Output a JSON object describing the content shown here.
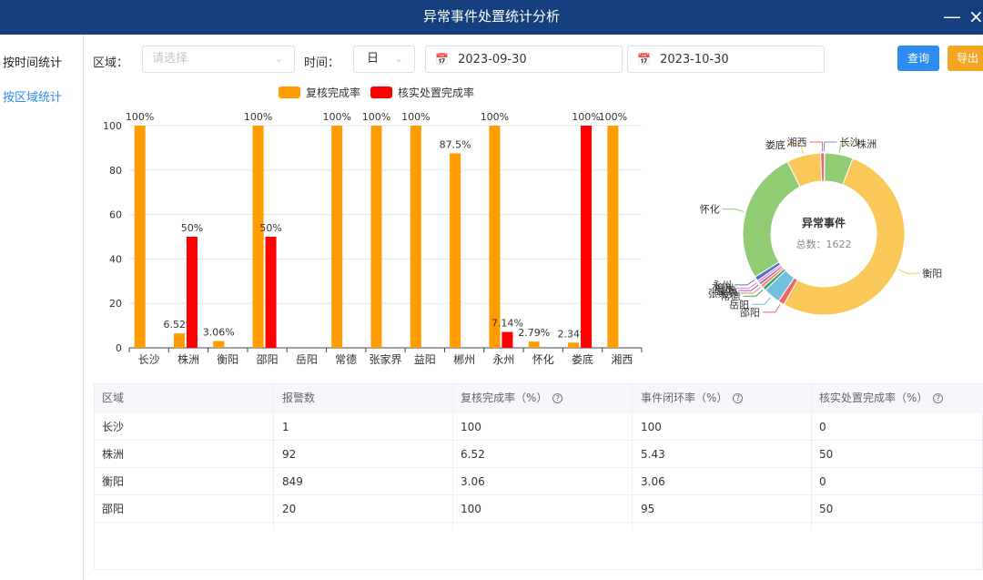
{
  "window": {
    "title": "异常事件处置统计分析",
    "minimize": "—",
    "close": "×"
  },
  "sidebar": {
    "items": [
      {
        "label": "按时间统计"
      },
      {
        "label": "按区域统计"
      }
    ]
  },
  "filters": {
    "region_label": "区域：",
    "region_placeholder": "请选择",
    "time_label": "时间：",
    "time_unit": "日",
    "start_date": "2023-09-30",
    "end_date": "2023-10-30",
    "query_button": "查询",
    "export_button": "导出"
  },
  "colors": {
    "orange": "#ff9c00",
    "red": "#ff0000",
    "blue": "#2d8cf0",
    "export": "#f5a623"
  },
  "chart_data": [
    {
      "type": "bar",
      "categories": [
        "长沙",
        "株洲",
        "衡阳",
        "邵阳",
        "岳阳",
        "常德",
        "张家界",
        "益阳",
        "郴州",
        "永州",
        "怀化",
        "娄底",
        "湘西"
      ],
      "series": [
        {
          "name": "复核完成率",
          "color": "#ff9c00",
          "values": [
            100,
            6.52,
            3.06,
            100,
            null,
            100,
            100,
            100,
            87.5,
            100,
            2.79,
            2.34,
            100
          ],
          "labels": [
            "100%",
            "6.52%",
            "3.06%",
            "100%",
            "",
            "100%",
            "100%",
            "100%",
            "87.5%",
            "100%",
            "2.79%",
            "2.34%",
            "100%"
          ]
        },
        {
          "name": "核实处置完成率",
          "color": "#ff0000",
          "values": [
            null,
            50,
            null,
            50,
            null,
            null,
            null,
            null,
            null,
            7.14,
            null,
            100,
            null
          ],
          "labels": [
            "",
            "50%",
            "",
            "50%",
            "",
            "",
            "",
            "",
            "",
            "7.14%",
            "",
            "100%",
            ""
          ]
        }
      ],
      "ylim": [
        0,
        100
      ],
      "yticks": [
        0,
        20,
        40,
        60,
        80,
        100
      ]
    },
    {
      "type": "pie",
      "center_title": "异常事件",
      "center_subtitle": "总数：1622",
      "slices": [
        {
          "name": "长沙",
          "value": 1,
          "color": "#7b88cf"
        },
        {
          "name": "株洲",
          "value": 92,
          "color": "#91cc75"
        },
        {
          "name": "衡阳",
          "value": 849,
          "color": "#fac858"
        },
        {
          "name": "邵阳",
          "value": 20,
          "color": "#ee6666"
        },
        {
          "name": "岳阳",
          "value": 55,
          "color": "#73c0de"
        },
        {
          "name": "常德",
          "value": 12,
          "color": "#3ba272"
        },
        {
          "name": "张家界",
          "value": 10,
          "color": "#fc8452"
        },
        {
          "name": "益阳",
          "value": 9,
          "color": "#9a60b4"
        },
        {
          "name": "郴州",
          "value": 8,
          "color": "#ea7ccc"
        },
        {
          "name": "永州",
          "value": 14,
          "color": "#5470c6"
        },
        {
          "name": "怀化",
          "value": 430,
          "color": "#91cc75"
        },
        {
          "name": "娄底",
          "value": 110,
          "color": "#fac858"
        },
        {
          "name": "湘西",
          "value": 12,
          "color": "#ee6666"
        }
      ]
    }
  ],
  "table": {
    "headers": [
      "区域",
      "报警数",
      "复核完成率（%）",
      "事件闭环率（%）",
      "核实处置完成率（%）"
    ],
    "rows": [
      [
        "长沙",
        "1",
        "100",
        "100",
        "0"
      ],
      [
        "株洲",
        "92",
        "6.52",
        "5.43",
        "50"
      ],
      [
        "衡阳",
        "849",
        "3.06",
        "3.06",
        "0"
      ],
      [
        "邵阳",
        "20",
        "100",
        "95",
        "50"
      ]
    ]
  }
}
